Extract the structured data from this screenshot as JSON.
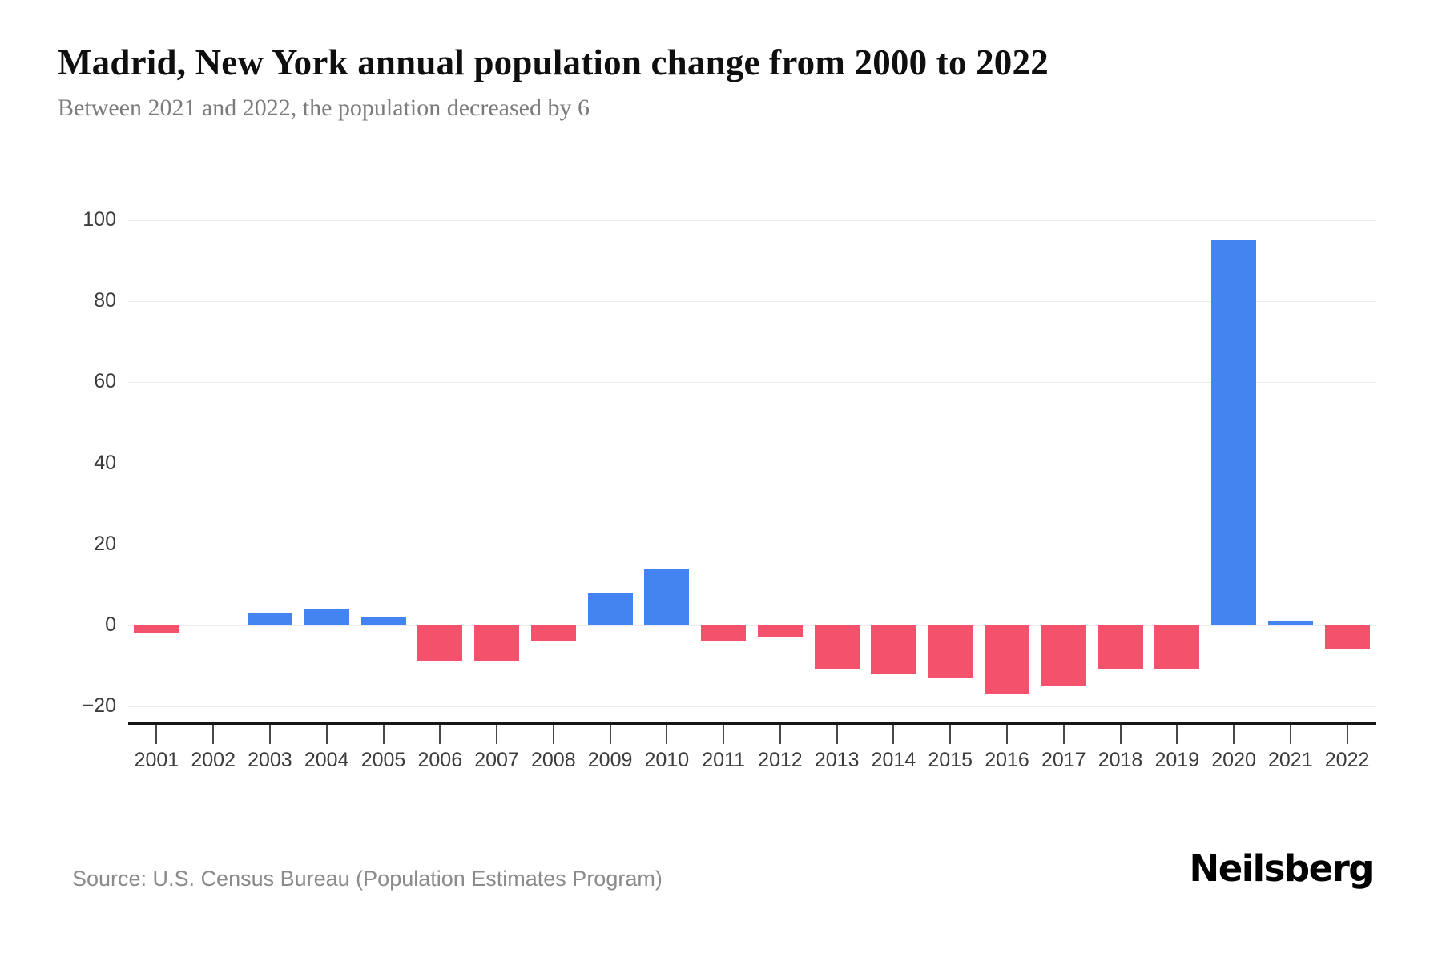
{
  "page": {
    "title": "Madrid, New York annual population change from 2000 to 2022",
    "subtitle": "Between 2021 and 2022, the population decreased by 6",
    "source": "Source: U.S. Census Bureau (Population Estimates Program)",
    "brand": "Neilsberg"
  },
  "chart_data": {
    "type": "bar",
    "title": "Madrid, New York annual population change from 2000 to 2022",
    "subtitle": "Between 2021 and 2022, the population decreased by 6",
    "series_name": "Annual population change",
    "categories": [
      "2001",
      "2002",
      "2003",
      "2004",
      "2005",
      "2006",
      "2007",
      "2008",
      "2009",
      "2010",
      "2011",
      "2012",
      "2013",
      "2014",
      "2015",
      "2016",
      "2017",
      "2018",
      "2019",
      "2020",
      "2021",
      "2022"
    ],
    "values": [
      -2,
      0,
      3,
      4,
      2,
      -9,
      -9,
      -4,
      8,
      14,
      -4,
      -3,
      -11,
      -12,
      -13,
      -17,
      -15,
      -11,
      -11,
      95,
      1,
      -6
    ],
    "ylim": [
      -20,
      100
    ],
    "yticks": [
      100,
      80,
      60,
      40,
      20,
      0,
      -20
    ],
    "grid": true,
    "legend": "none",
    "colors": {
      "positive": "#4484f0",
      "negative": "#f4516c",
      "gridline": "#ececec",
      "axis": "#161616"
    },
    "source": "Source: U.S. Census Bureau (Population Estimates Program)"
  }
}
